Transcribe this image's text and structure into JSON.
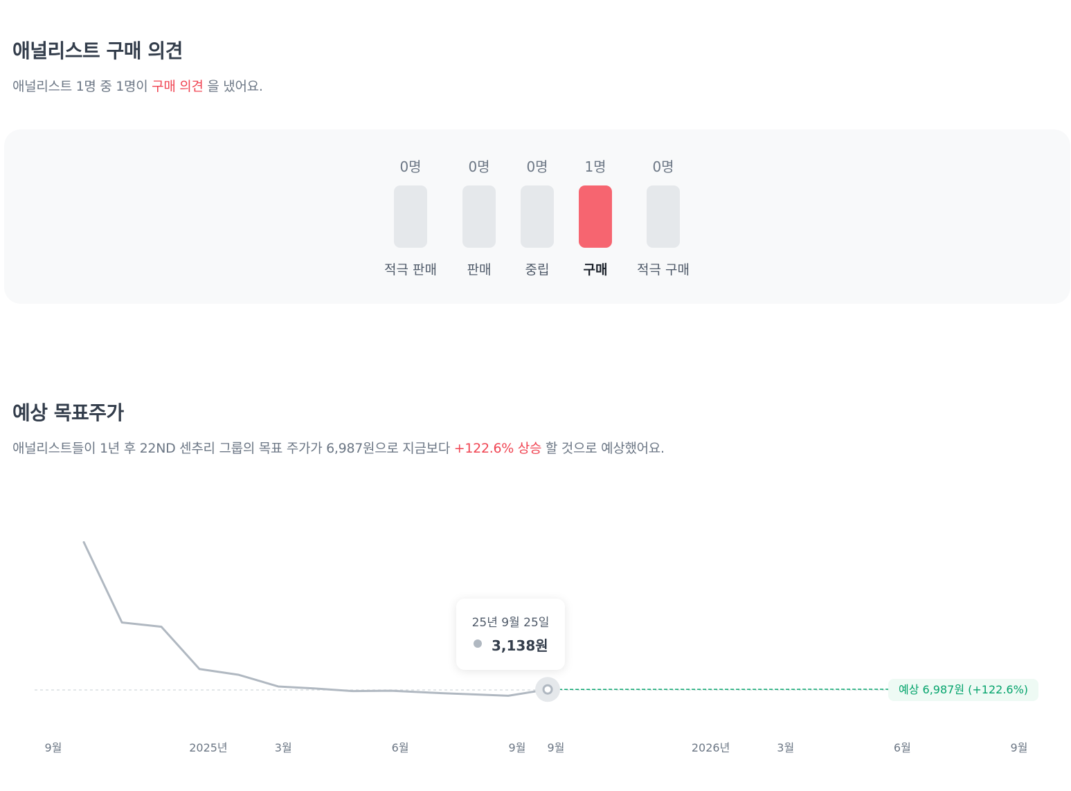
{
  "opinion": {
    "title": "애널리스트 구매 의견",
    "desc_prefix": "애널리스트 1명 중 1명이 ",
    "desc_highlight": "구매 의견",
    "desc_suffix": " 을 냈어요.",
    "ratings": [
      {
        "count": "0명",
        "label": "적극 판매",
        "active": false
      },
      {
        "count": "0명",
        "label": "판매",
        "active": false
      },
      {
        "count": "0명",
        "label": "중립",
        "active": false
      },
      {
        "count": "1명",
        "label": "구매",
        "active": true
      },
      {
        "count": "0명",
        "label": "적극 구매",
        "active": false
      }
    ]
  },
  "target": {
    "title": "예상 목표주가",
    "desc_prefix": "애널리스트들이 1년 후 22ND 센추리 그룹의 목표 주가가 6,987원으로 지금보다 ",
    "desc_highlight": "+122.6% 상승",
    "desc_suffix": " 할 것으로 예상했어요."
  },
  "chart_data": {
    "type": "line",
    "series": [
      {
        "x": [
          "2024-09-25",
          "2024-10-25",
          "2024-11-25",
          "2024-12-25",
          "2025-01-25",
          "2025-02-25",
          "2025-03-25",
          "2025-04-25",
          "2025-05-25",
          "2025-06-25",
          "2025-07-25",
          "2025-08-25",
          "2025-09-25"
        ],
        "values": [
          41100,
          20400,
          19300,
          8400,
          6900,
          3900,
          3400,
          2700,
          2800,
          2300,
          1900,
          1500,
          3138
        ]
      }
    ],
    "forecast": {
      "x": [
        "2025-09-25",
        "2026-05-25"
      ],
      "values": [
        3138,
        6987
      ],
      "color": "#03a36b"
    },
    "tooltip": {
      "date": "25년 9월 25일",
      "value": "3,138원"
    },
    "prediction_label": "예상 6,987원 (+122.6%)",
    "x_tick_labels_left": [
      "9월",
      "2025년",
      "3월",
      "6월",
      "9월"
    ],
    "x_tick_labels_right": [
      "9월",
      "2026년",
      "3월",
      "6월",
      "9월"
    ],
    "line_color": "#b0b8c1"
  }
}
